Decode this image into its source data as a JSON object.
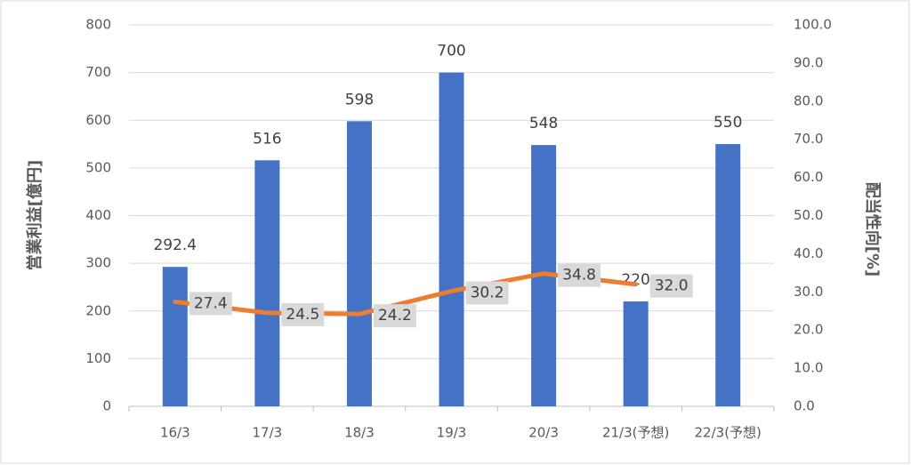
{
  "chart_data": {
    "type": "bar",
    "categories": [
      "16/3",
      "17/3",
      "18/3",
      "19/3",
      "20/3",
      "21/3(予想)",
      "22/3(予想)"
    ],
    "y_label": "営業利益[億円]",
    "y2_label": "配当性向[%]",
    "ylim": [
      0,
      800
    ],
    "yticks": [
      0,
      100,
      200,
      300,
      400,
      500,
      600,
      700,
      800
    ],
    "y2lim": [
      0,
      100
    ],
    "y2ticks": [
      {
        "value": 0,
        "label": "0.0"
      },
      {
        "value": 10,
        "label": "10.0"
      },
      {
        "value": 20,
        "label": "20.0"
      },
      {
        "value": 30,
        "label": "30.0"
      },
      {
        "value": 40,
        "label": "40.0"
      },
      {
        "value": 50,
        "label": "50.0"
      },
      {
        "value": 60,
        "label": "60.0"
      },
      {
        "value": 70,
        "label": "70.0"
      },
      {
        "value": 80,
        "label": "80.0"
      },
      {
        "value": 90,
        "label": "90.0"
      },
      {
        "value": 100,
        "label": "100.0"
      }
    ],
    "grid": true,
    "series": [
      {
        "type": "bar",
        "color": "#4472c4",
        "values": [
          292.4,
          516,
          598,
          700,
          548,
          220,
          550
        ]
      },
      {
        "type": "line",
        "color": "#ed7d31",
        "axis": "y2",
        "values": [
          27.4,
          24.5,
          24.2,
          30.2,
          34.8,
          32,
          null
        ],
        "value_labels": [
          "27.4",
          "24.5",
          "24.2",
          "30.2",
          "34.8",
          "32.0",
          null
        ]
      }
    ]
  }
}
